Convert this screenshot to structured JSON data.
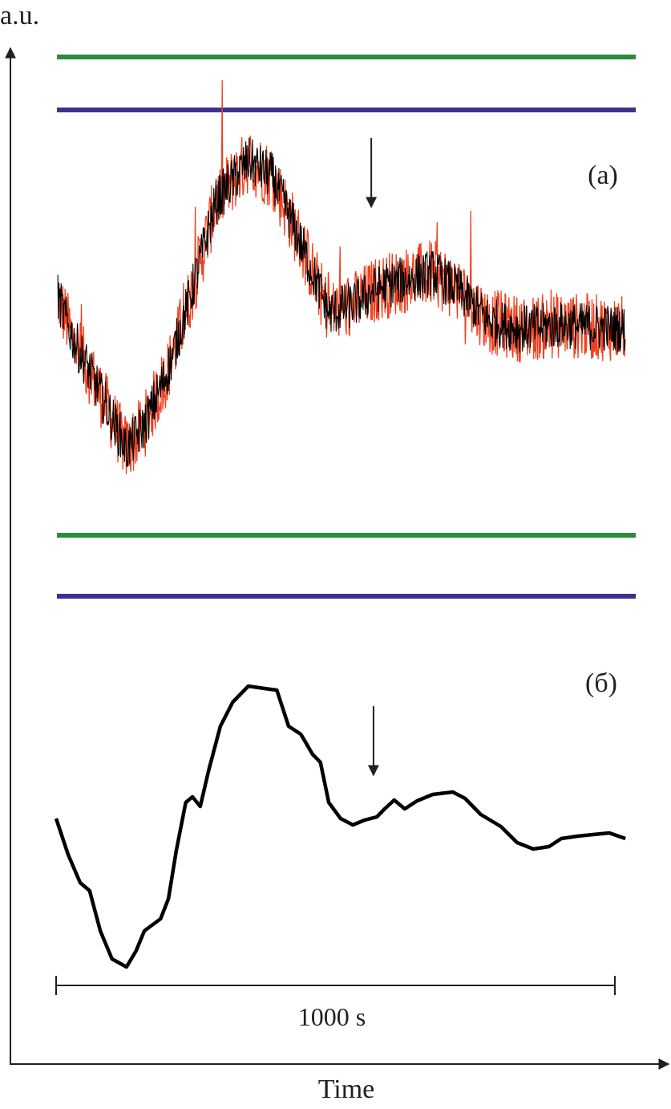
{
  "chart_data": {
    "type": "line",
    "title": "",
    "ylabel": "a.u.",
    "xlabel": "Time",
    "grid": false,
    "colors": {
      "axis": "#231f20",
      "green": "#2a8c3c",
      "blue": "#3f2f8f",
      "red": "#f0401e",
      "black": "#000000"
    },
    "scale_bar": {
      "label": "1000 s",
      "t_start": 0,
      "t_end": 1000
    },
    "panels": [
      {
        "label": "(a)",
        "arrow_t": 564,
        "levels": [
          {
            "color": "green",
            "value": 12.54
          },
          {
            "color": "blue",
            "value": 11.88
          }
        ],
        "series": [
          {
            "color": "red",
            "style": "noisy",
            "t": [
              3,
              29,
              72,
              126,
              158,
              201,
              244,
              287,
              344,
              387,
              430,
              488,
              531,
              574,
              617,
              674,
              717,
              775,
              832,
              904,
              1019
            ],
            "values": [
              9.55,
              9.05,
              8.45,
              7.65,
              7.95,
              8.65,
              9.65,
              10.75,
              11.25,
              11.05,
              10.35,
              9.35,
              9.45,
              9.65,
              9.75,
              9.85,
              9.65,
              9.25,
              9.15,
              9.2,
              9.15
            ]
          },
          {
            "color": "black",
            "style": "noisy",
            "t": [
              3,
              29,
              72,
              126,
              158,
              201,
              244,
              287,
              344,
              387,
              430,
              488,
              531,
              574,
              617,
              674,
              717,
              775,
              832,
              904,
              1019
            ],
            "values": [
              9.55,
              9.05,
              8.45,
              7.65,
              7.95,
              8.65,
              9.65,
              10.75,
              11.25,
              11.05,
              10.35,
              9.35,
              9.45,
              9.65,
              9.75,
              9.85,
              9.65,
              9.25,
              9.15,
              9.2,
              9.15
            ]
          }
        ]
      },
      {
        "label": "(б)",
        "arrow_t": 568,
        "levels": [
          {
            "color": "green",
            "value": 6.58
          },
          {
            "color": "blue",
            "value": 5.82
          }
        ],
        "series": [
          {
            "color": "black",
            "style": "smooth",
            "t": [
              0,
              21.5,
              43,
              60,
              79,
              100,
              126,
              143,
              158,
              187,
              201,
              215,
              232,
              244,
              258,
              273,
              294,
              316,
              344,
              373,
              395,
              416,
              438,
              459,
              473,
              488,
              509,
              531,
              552,
              574,
              588,
              605,
              624,
              646,
              674,
              710,
              732,
              760,
              796,
              825,
              854,
              882,
              904,
              933,
              961,
              990,
              1019
            ],
            "values": [
              3.05,
              2.6,
              2.25,
              2.15,
              1.65,
              1.3,
              1.2,
              1.4,
              1.65,
              1.8,
              2.05,
              2.65,
              3.25,
              3.32,
              3.2,
              3.65,
              4.2,
              4.5,
              4.7,
              4.67,
              4.65,
              4.2,
              4.1,
              3.85,
              3.75,
              3.25,
              3.05,
              2.97,
              3.03,
              3.07,
              3.17,
              3.28,
              3.17,
              3.27,
              3.35,
              3.38,
              3.3,
              3.1,
              2.95,
              2.75,
              2.67,
              2.7,
              2.8,
              2.83,
              2.85,
              2.87,
              2.8
            ]
          }
        ]
      }
    ]
  }
}
